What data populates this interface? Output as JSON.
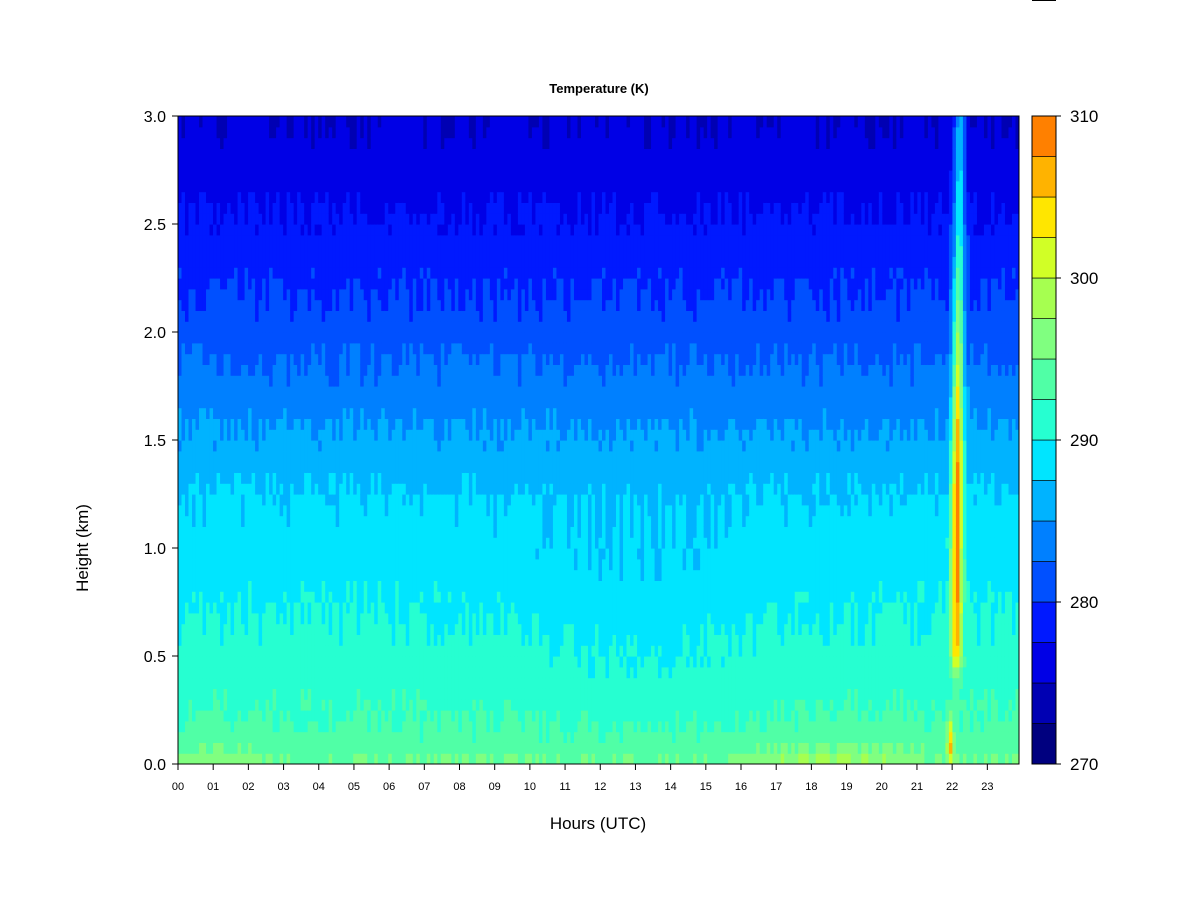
{
  "chart_data": {
    "type": "heatmap",
    "title": "Temperature (K)",
    "xlabel": "Hours (UTC)",
    "ylabel": "Height (km)",
    "x_range": [
      0,
      23.9
    ],
    "ylim": [
      0,
      3.0
    ],
    "x_ticks": [
      "00",
      "01",
      "02",
      "03",
      "04",
      "05",
      "06",
      "07",
      "08",
      "09",
      "10",
      "11",
      "12",
      "13",
      "14",
      "15",
      "16",
      "17",
      "18",
      "19",
      "20",
      "21",
      "22",
      "23"
    ],
    "y_ticks": [
      "0.0",
      "0.5",
      "1.0",
      "1.5",
      "2.0",
      "2.5",
      "3.0"
    ],
    "colorbar": {
      "min": 270,
      "max": 310,
      "step": 2.5,
      "tick_labels": [
        "270",
        "280",
        "290",
        "300",
        "310"
      ],
      "colors": [
        "#00007f",
        "#0000b3",
        "#0000e6",
        "#0019ff",
        "#0050ff",
        "#0080ff",
        "#00b3ff",
        "#00e5ff",
        "#26ffd1",
        "#50ffa6",
        "#80ff80",
        "#a6ff50",
        "#d1ff26",
        "#ffe600",
        "#ffb300",
        "#ff8000",
        "#ff4d00",
        "#ff1900",
        "#e60000",
        "#b30000",
        "#800000"
      ]
    },
    "field_profile": {
      "heights_km": [
        0.0,
        0.1,
        0.3,
        0.6,
        0.9,
        1.2,
        1.5,
        1.8,
        2.1,
        2.4,
        2.7,
        3.0
      ],
      "typical_temperature_K": [
        295.5,
        293.5,
        292.0,
        290.5,
        289.0,
        288.0,
        285.5,
        283.0,
        280.5,
        278.5,
        276.5,
        275.0
      ]
    },
    "features": [
      {
        "description": "warm near-surface layer",
        "hours": [
          16,
          21
        ],
        "height_km": [
          0,
          0.1
        ],
        "temperature_K": 297
      },
      {
        "description": "narrow warm plume",
        "hours": [
          21.8,
          22.4
        ],
        "height_km": [
          0.45,
          3.0
        ],
        "peak_temperature_K": 309
      },
      {
        "description": "surface warm spot",
        "hours": [
          21.8,
          22.1
        ],
        "height_km": [
          0,
          0.25
        ],
        "peak_temperature_K": 306
      }
    ]
  }
}
